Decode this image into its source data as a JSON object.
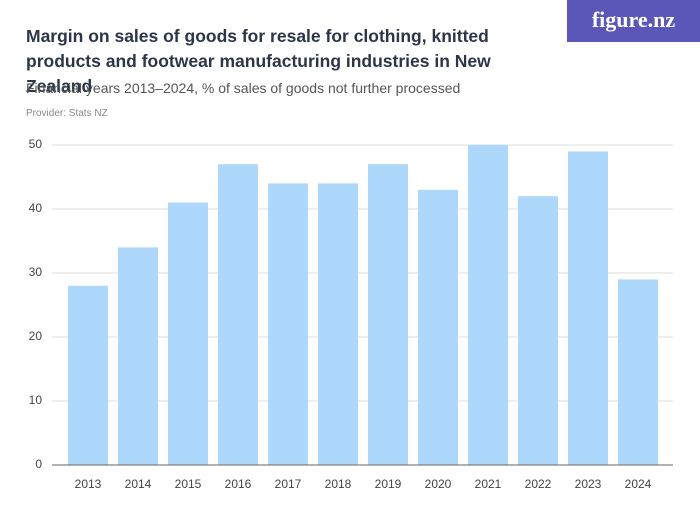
{
  "chart_data": {
    "type": "bar",
    "title": "Margin on sales of goods for resale for clothing, knitted products and footwear manufacturing industries in New Zealand",
    "subtitle": "Financial years 2013–2024, % of sales of goods not further processed",
    "provider": "Provider: Stats NZ",
    "logo": "figure.nz",
    "categories": [
      "2013",
      "2014",
      "2015",
      "2016",
      "2017",
      "2018",
      "2019",
      "2020",
      "2021",
      "2022",
      "2023",
      "2024"
    ],
    "values": [
      28,
      34,
      41,
      47,
      44,
      44,
      47,
      43,
      50,
      42,
      49,
      29
    ],
    "color": "#add8fb",
    "ylim": [
      0,
      50
    ],
    "yticks": [
      0,
      10,
      20,
      30,
      40,
      50
    ],
    "grid": true
  }
}
